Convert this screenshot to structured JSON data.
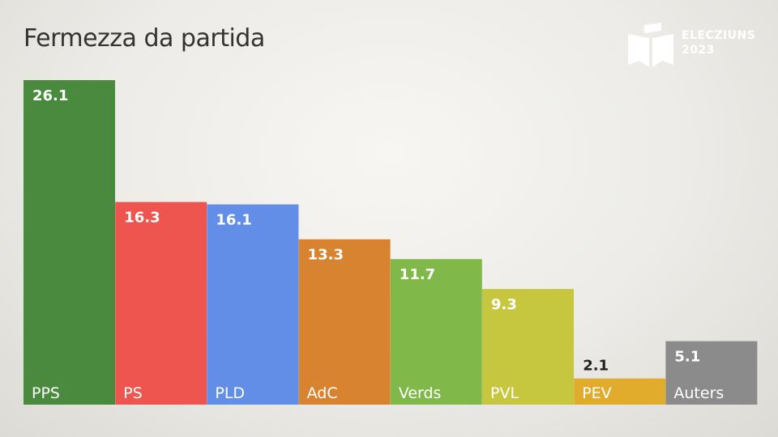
{
  "chart_data": {
    "type": "bar",
    "title": "Fermezza da partida",
    "categories": [
      "PPS",
      "PS",
      "PLD",
      "AdC",
      "Verds",
      "PVL",
      "PEV",
      "Auters"
    ],
    "values": [
      26.1,
      16.3,
      16.1,
      13.3,
      11.7,
      9.3,
      2.1,
      5.1
    ],
    "value_labels": [
      "26.1",
      "16.3",
      "16.1",
      "13.3",
      "11.7",
      "9.3",
      "2.1",
      "5.1"
    ],
    "colors": [
      "#4a8a3e",
      "#ee554e",
      "#628ee8",
      "#d88330",
      "#80b84a",
      "#c7c73f",
      "#e1ac2b",
      "#8b8b8b"
    ],
    "ylim": [
      0,
      26.1
    ],
    "grid": false,
    "legend": "none",
    "xlabel": "",
    "ylabel": ""
  },
  "branding": {
    "logo_icon": "ballot-box-icon",
    "line1": "ELECZIUNS",
    "line2": "2023"
  }
}
